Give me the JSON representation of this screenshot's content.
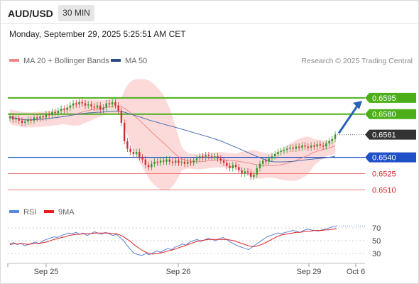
{
  "header": {
    "symbol": "AUD/USD",
    "timeframe": "30 MIN",
    "datetime": "Monday, September 29, 2025 5:25:51 AM CET"
  },
  "legend": {
    "ma20_label": "MA 20 + Bollinger Bands",
    "ma50_label": "MA 50",
    "credit": "Research © 2025 Trading Central",
    "rsi_label": "RSI",
    "ma9_label": "9MA"
  },
  "colors": {
    "bollinger_fill": "#fbd3d3",
    "ma20": "#f08a8a",
    "ma50": "#4a6fb0",
    "candle_up": "#2a9d2a",
    "candle_down": "#d03030",
    "resistance": "#4caf1a",
    "support": "#2050c8",
    "minor_level": "#f07a7a",
    "current_price_bg": "#333333",
    "arrow": "#2860b8",
    "rsi": "#5b86dd",
    "rsi_ma": "#e02020"
  },
  "chart_data": [
    {
      "type": "candlestick",
      "title": "AUD/USD",
      "timeframe": "30 MIN",
      "x_tick_labels": [
        "Sep 25",
        "Sep 26",
        "Sep 29",
        "Oct 6"
      ],
      "ylim": [
        0.6503,
        0.6612
      ],
      "current_price": 0.6561,
      "levels": [
        {
          "value": 0.6595,
          "label": "0.6595",
          "kind": "resistance"
        },
        {
          "value": 0.658,
          "label": "0.6580",
          "kind": "resistance"
        },
        {
          "value": 0.6561,
          "label": "0.6561",
          "kind": "current"
        },
        {
          "value": 0.654,
          "label": "0.6540",
          "kind": "support"
        },
        {
          "value": 0.6525,
          "label": "0.6525",
          "kind": "minor"
        },
        {
          "value": 0.651,
          "label": "0.6510",
          "kind": "minor"
        }
      ],
      "closes": [
        0.6578,
        0.6575,
        0.6576,
        0.6574,
        0.6572,
        0.6573,
        0.6575,
        0.6574,
        0.6577,
        0.6576,
        0.6578,
        0.6577,
        0.658,
        0.6579,
        0.6582,
        0.6581,
        0.6583,
        0.6585,
        0.6584,
        0.6586,
        0.6588,
        0.659,
        0.6589,
        0.6591,
        0.659,
        0.6588,
        0.6589,
        0.6587,
        0.6586,
        0.6588,
        0.6584,
        0.6586,
        0.659,
        0.6589,
        0.6591,
        0.6588,
        0.6583,
        0.6572,
        0.6555,
        0.6548,
        0.6545,
        0.6543,
        0.6545,
        0.654,
        0.6538,
        0.6533,
        0.6531,
        0.6534,
        0.6536,
        0.6535,
        0.6537,
        0.6536,
        0.6538,
        0.6536,
        0.6535,
        0.6537,
        0.6535,
        0.6536,
        0.6534,
        0.6536,
        0.6535,
        0.6537,
        0.6539,
        0.6541,
        0.654,
        0.6542,
        0.6541,
        0.654,
        0.6541,
        0.6539,
        0.6537,
        0.6535,
        0.6532,
        0.653,
        0.6533,
        0.6531,
        0.6528,
        0.6525,
        0.6527,
        0.6526,
        0.6522,
        0.6524,
        0.653,
        0.6534,
        0.6537,
        0.6536,
        0.6539,
        0.6541,
        0.6543,
        0.6545,
        0.6546,
        0.6547,
        0.6548,
        0.6549,
        0.6548,
        0.655,
        0.6549,
        0.6551,
        0.655,
        0.6549,
        0.6551,
        0.655,
        0.6552,
        0.6551,
        0.655,
        0.6553,
        0.6555,
        0.6557,
        0.6561
      ],
      "ma20_end": 0.6549,
      "ma50_end": 0.654,
      "forecast_arrow": {
        "from": 0.6561,
        "to": 0.6595
      }
    },
    {
      "type": "line",
      "title": "RSI",
      "series": [
        {
          "name": "RSI"
        },
        {
          "name": "9MA"
        }
      ],
      "y_tick_labels": [
        "70",
        "50",
        "30"
      ],
      "ylim": [
        20,
        80
      ],
      "rsi": [
        45,
        47,
        44,
        46,
        42,
        44,
        46,
        48,
        45,
        50,
        52,
        54,
        56,
        55,
        58,
        60,
        62,
        61,
        63,
        60,
        62,
        58,
        61,
        64,
        62,
        60,
        63,
        61,
        58,
        60,
        55,
        50,
        42,
        35,
        30,
        28,
        27,
        30,
        28,
        31,
        34,
        32,
        35,
        38,
        36,
        40,
        42,
        45,
        43,
        48,
        50,
        52,
        49,
        51,
        54,
        52,
        50,
        53,
        55,
        52,
        48,
        45,
        42,
        40,
        38,
        36,
        40,
        44,
        48,
        52,
        56,
        58,
        60,
        62,
        61,
        63,
        64,
        66,
        65,
        63,
        66,
        68,
        67,
        66,
        65,
        67,
        68,
        70,
        72,
        73
      ],
      "rsi_ma": [
        44,
        45,
        45,
        45,
        45,
        44,
        45,
        46,
        46,
        47,
        48,
        50,
        52,
        53,
        55,
        56,
        58,
        59,
        60,
        60,
        61,
        61,
        61,
        62,
        62,
        62,
        62,
        62,
        61,
        61,
        59,
        56,
        52,
        48,
        43,
        39,
        35,
        32,
        30,
        29,
        30,
        31,
        32,
        34,
        35,
        37,
        39,
        41,
        43,
        45,
        47,
        49,
        50,
        51,
        52,
        52,
        52,
        52,
        52,
        52,
        51,
        50,
        48,
        46,
        44,
        42,
        41,
        41,
        43,
        45,
        48,
        51,
        54,
        57,
        59,
        60,
        61,
        62,
        63,
        63,
        64,
        65,
        65,
        66,
        66,
        66,
        67,
        67,
        68,
        69
      ]
    }
  ]
}
